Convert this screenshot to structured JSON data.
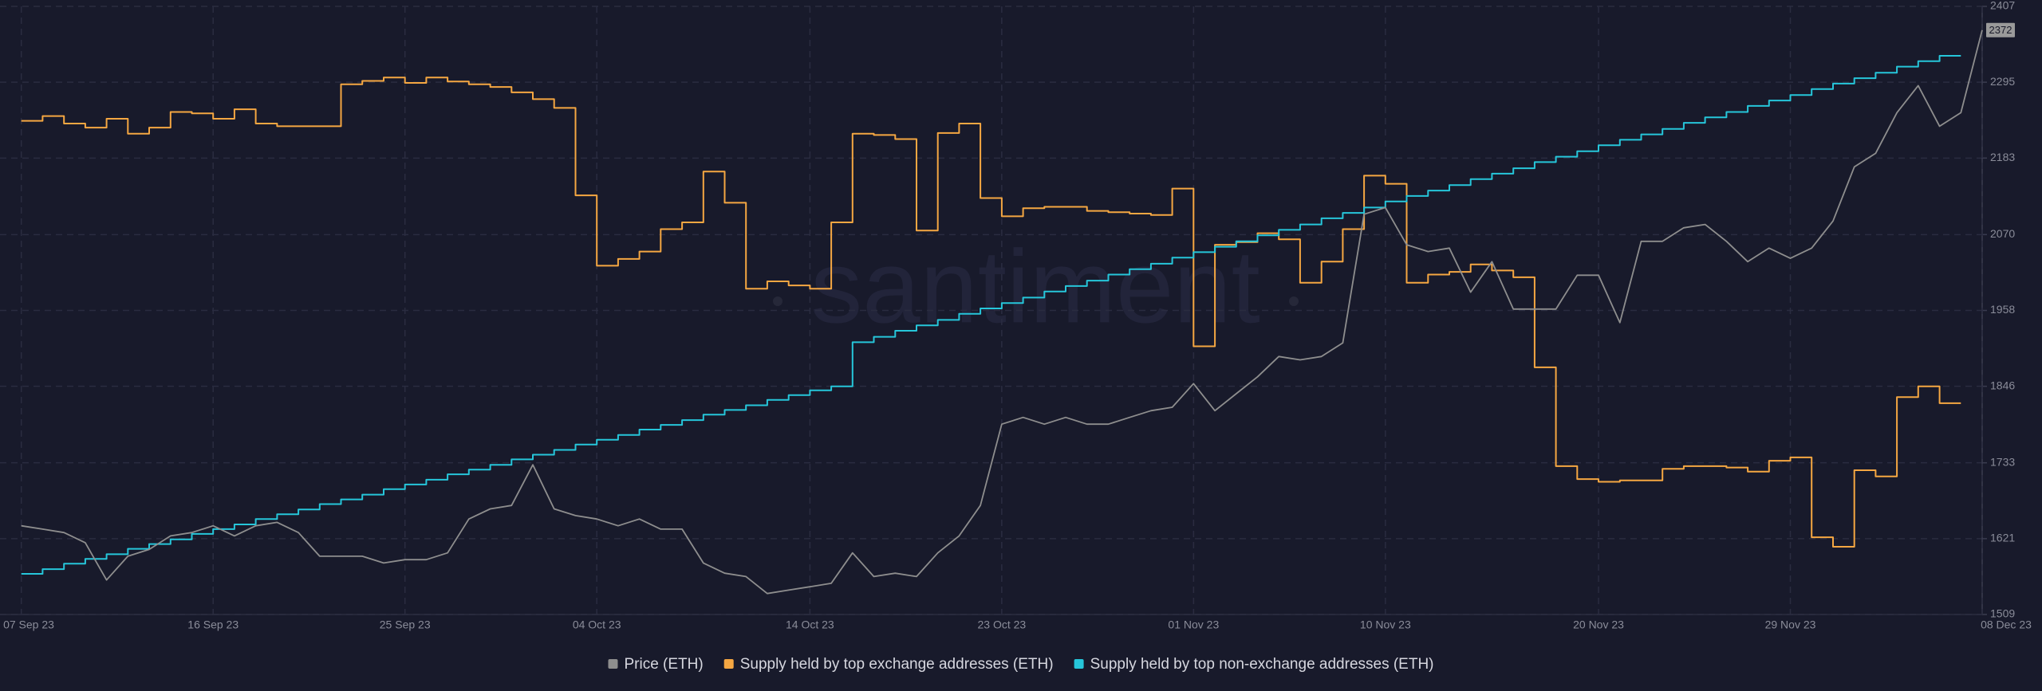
{
  "chart_data": {
    "type": "line",
    "watermark": "santiment",
    "x": [
      "2023-09-07",
      "2023-09-08",
      "2023-09-09",
      "2023-09-10",
      "2023-09-11",
      "2023-09-12",
      "2023-09-13",
      "2023-09-14",
      "2023-09-15",
      "2023-09-16",
      "2023-09-17",
      "2023-09-18",
      "2023-09-19",
      "2023-09-20",
      "2023-09-21",
      "2023-09-22",
      "2023-09-23",
      "2023-09-24",
      "2023-09-25",
      "2023-09-26",
      "2023-09-27",
      "2023-09-28",
      "2023-09-29",
      "2023-09-30",
      "2023-10-01",
      "2023-10-02",
      "2023-10-03",
      "2023-10-04",
      "2023-10-05",
      "2023-10-06",
      "2023-10-07",
      "2023-10-08",
      "2023-10-09",
      "2023-10-10",
      "2023-10-11",
      "2023-10-12",
      "2023-10-13",
      "2023-10-14",
      "2023-10-15",
      "2023-10-16",
      "2023-10-17",
      "2023-10-18",
      "2023-10-19",
      "2023-10-20",
      "2023-10-21",
      "2023-10-22",
      "2023-10-23",
      "2023-10-24",
      "2023-10-25",
      "2023-10-26",
      "2023-10-27",
      "2023-10-28",
      "2023-10-29",
      "2023-10-30",
      "2023-10-31",
      "2023-11-01",
      "2023-11-02",
      "2023-11-03",
      "2023-11-04",
      "2023-11-05",
      "2023-11-06",
      "2023-11-07",
      "2023-11-08",
      "2023-11-09",
      "2023-11-10",
      "2023-11-11",
      "2023-11-12",
      "2023-11-13",
      "2023-11-14",
      "2023-11-15",
      "2023-11-16",
      "2023-11-17",
      "2023-11-18",
      "2023-11-19",
      "2023-11-20",
      "2023-11-21",
      "2023-11-22",
      "2023-11-23",
      "2023-11-24",
      "2023-11-25",
      "2023-11-26",
      "2023-11-27",
      "2023-11-28",
      "2023-11-29",
      "2023-11-30",
      "2023-12-01",
      "2023-12-02",
      "2023-12-03",
      "2023-12-04",
      "2023-12-05",
      "2023-12-06",
      "2023-12-07",
      "2023-12-08"
    ],
    "series": [
      {
        "name": "Price (ETH)",
        "color": "#8e8e8e",
        "step": false,
        "values": [
          1640,
          1635,
          1630,
          1615,
          1560,
          1595,
          1605,
          1625,
          1630,
          1640,
          1625,
          1640,
          1645,
          1630,
          1595,
          1595,
          1595,
          1585,
          1590,
          1590,
          1600,
          1650,
          1665,
          1670,
          1730,
          1665,
          1655,
          1650,
          1640,
          1650,
          1635,
          1635,
          1585,
          1570,
          1565,
          1540,
          1545,
          1550,
          1555,
          1600,
          1565,
          1570,
          1565,
          1600,
          1625,
          1670,
          1790,
          1800,
          1790,
          1800,
          1790,
          1790,
          1800,
          1810,
          1815,
          1850,
          1810,
          1835,
          1860,
          1890,
          1885,
          1890,
          1910,
          2100,
          2110,
          2055,
          2045,
          2050,
          1985,
          2030,
          1960,
          1960,
          1960,
          2010,
          2010,
          1940,
          2060,
          2060,
          2080,
          2085,
          2060,
          2030,
          2050,
          2035,
          2050,
          2090,
          2170,
          2190,
          2250,
          2290,
          2230,
          2250,
          2372
        ]
      },
      {
        "name": "Supply held by top exchange addresses (ETH)",
        "color": "#f5a742",
        "step": true,
        "values": [
          2238,
          2245,
          2234,
          2228,
          2241,
          2219,
          2228,
          2251,
          2249,
          2241,
          2255,
          2234,
          2230,
          2230,
          2230,
          2292,
          2297,
          2302,
          2294,
          2302,
          2296,
          2292,
          2288,
          2280,
          2270,
          2257,
          2128,
          2024,
          2034,
          2045,
          2078,
          2088,
          2163,
          2117,
          1990,
          2001,
          1995,
          1990,
          2088,
          2219,
          2217,
          2211,
          2076,
          2220,
          2234,
          2124,
          2097,
          2109,
          2111,
          2111,
          2105,
          2103,
          2101,
          2099,
          2138,
          1905,
          2055,
          2059,
          2072,
          2063,
          1999,
          2030,
          2078,
          2157,
          2145,
          1999,
          2011,
          2015,
          2026,
          2017,
          2007,
          1874,
          1728,
          1709,
          1705,
          1707,
          1707,
          1724,
          1728,
          1728,
          1726,
          1720,
          1736,
          1741,
          1623,
          1609,
          1722,
          1713,
          1830,
          1846,
          1821,
          null,
          null
        ]
      },
      {
        "name": "Supply held by top non-exchange addresses (ETH)",
        "color": "#26c6da",
        "step": true,
        "values": [
          1569,
          1576,
          1584,
          1591,
          1598,
          1606,
          1613,
          1620,
          1628,
          1635,
          1642,
          1650,
          1657,
          1664,
          1672,
          1679,
          1686,
          1694,
          1701,
          1708,
          1716,
          1723,
          1730,
          1738,
          1745,
          1752,
          1760,
          1767,
          1774,
          1782,
          1789,
          1796,
          1804,
          1811,
          1818,
          1826,
          1833,
          1840,
          1846,
          1911,
          1919,
          1928,
          1936,
          1944,
          1953,
          1961,
          1969,
          1977,
          1986,
          1994,
          2002,
          2011,
          2019,
          2027,
          2036,
          2044,
          2052,
          2060,
          2069,
          2077,
          2085,
          2094,
          2102,
          2110,
          2119,
          2127,
          2135,
          2143,
          2152,
          2160,
          2168,
          2177,
          2185,
          2193,
          2202,
          2210,
          2218,
          2226,
          2235,
          2243,
          2251,
          2260,
          2268,
          2276,
          2285,
          2293,
          2301,
          2309,
          2318,
          2326,
          2334,
          null,
          null
        ]
      }
    ],
    "xlim": [
      "2023-09-06",
      "2023-12-08"
    ],
    "xticks": [
      {
        "value": "2023-09-07",
        "label": "07 Sep 23"
      },
      {
        "value": "2023-09-16",
        "label": "16 Sep 23"
      },
      {
        "value": "2023-09-25",
        "label": "25 Sep 23"
      },
      {
        "value": "2023-10-04",
        "label": "04 Oct 23"
      },
      {
        "value": "2023-10-14",
        "label": "14 Oct 23"
      },
      {
        "value": "2023-10-23",
        "label": "23 Oct 23"
      },
      {
        "value": "2023-11-01",
        "label": "01 Nov 23"
      },
      {
        "value": "2023-11-10",
        "label": "10 Nov 23"
      },
      {
        "value": "2023-11-20",
        "label": "20 Nov 23"
      },
      {
        "value": "2023-11-29",
        "label": "29 Nov 23"
      },
      {
        "value": "2023-12-08",
        "label": "08 Dec 23"
      }
    ],
    "ylim": [
      1509,
      2407
    ],
    "yticks": [
      1509,
      1621,
      1733,
      1846,
      1958,
      2070,
      2183,
      2295,
      2407
    ],
    "grid": true,
    "legend": "bottom"
  }
}
